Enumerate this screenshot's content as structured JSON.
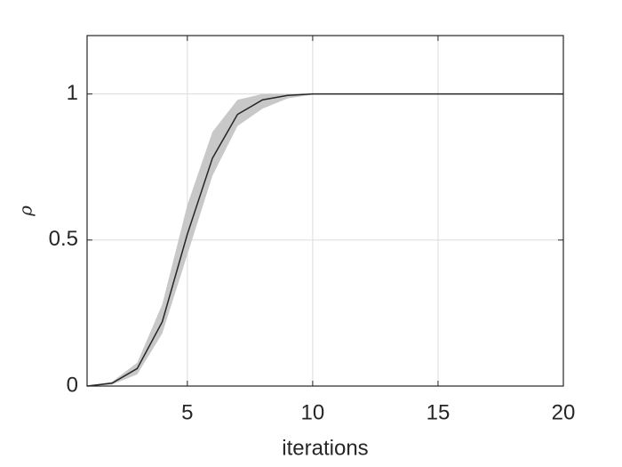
{
  "chart_data": {
    "type": "band-line",
    "x_label": "iterations",
    "y_label": "ρ",
    "x": [
      1,
      2,
      3,
      4,
      5,
      6,
      7,
      8,
      9,
      10,
      11,
      12,
      13,
      14,
      15,
      16,
      17,
      18,
      19,
      20
    ],
    "values": [
      0,
      0.01,
      0.06,
      0.22,
      0.52,
      0.78,
      0.93,
      0.98,
      0.995,
      1,
      1,
      1,
      1,
      1,
      1,
      1,
      1,
      1,
      1,
      1
    ],
    "lower": [
      0,
      0.005,
      0.04,
      0.18,
      0.45,
      0.72,
      0.89,
      0.95,
      0.985,
      0.998,
      1,
      1,
      1,
      1,
      1,
      1,
      1,
      1,
      1,
      1
    ],
    "upper": [
      0,
      0.015,
      0.08,
      0.28,
      0.62,
      0.87,
      0.98,
      1,
      1,
      1,
      1,
      1,
      1,
      1,
      1,
      1,
      1,
      1,
      1,
      1
    ],
    "color": "#262626",
    "band_color": "#c8c8c8",
    "xlim": [
      1,
      20
    ],
    "xticks": [
      5,
      10,
      15,
      20
    ],
    "ylim": [
      0,
      1.2
    ],
    "yticks": [
      0,
      0.5,
      1
    ],
    "grid": true
  }
}
